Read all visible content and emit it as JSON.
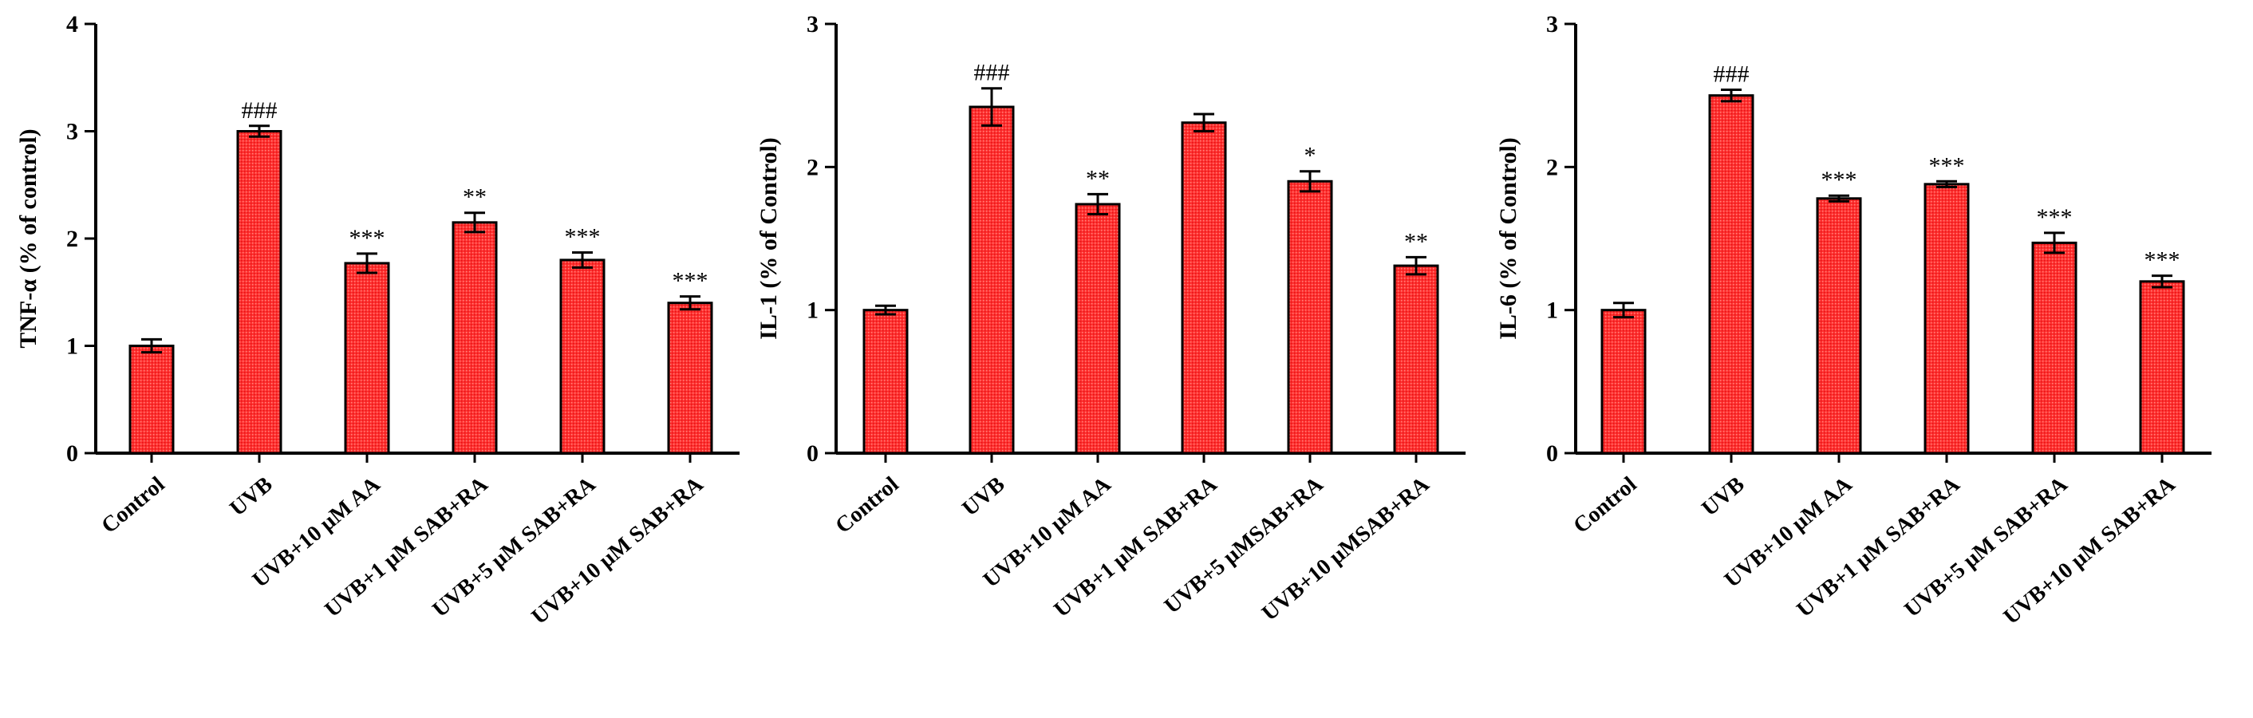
{
  "colors": {
    "bar_fill": "#ff3030",
    "bar_stroke": "#000000",
    "axis": "#000000"
  },
  "chart_data": [
    {
      "type": "bar",
      "ylabel": "TNF-α (% of control)",
      "ylim": [
        0,
        4
      ],
      "yticks": [
        0,
        1,
        2,
        3,
        4
      ],
      "categories": [
        "Control",
        "UVB",
        "UVB+10 μM AA",
        "UVB+1 μM SAB+RA",
        "UVB+5 μM SAB+RA",
        "UVB+10 μM SAB+RA"
      ],
      "values": [
        1.0,
        3.0,
        1.77,
        2.15,
        1.8,
        1.4
      ],
      "errors": [
        0.06,
        0.05,
        0.09,
        0.09,
        0.07,
        0.06
      ],
      "annotations": [
        "",
        "###",
        "***",
        "**",
        "***",
        "***"
      ],
      "grid": false
    },
    {
      "type": "bar",
      "ylabel": "IL-1 (% of Control)",
      "ylim": [
        0,
        3
      ],
      "yticks": [
        0,
        1,
        2,
        3
      ],
      "categories": [
        "Control",
        "UVB",
        "UVB+10 μM AA",
        "UVB+1 μM SAB+RA",
        "UVB+5 μMSAB+RA",
        "UVB+10 μMSAB+RA"
      ],
      "values": [
        1.0,
        2.42,
        1.74,
        2.31,
        1.9,
        1.31
      ],
      "errors": [
        0.03,
        0.13,
        0.07,
        0.06,
        0.07,
        0.06
      ],
      "annotations": [
        "",
        "###",
        "**",
        "",
        "*",
        "**"
      ],
      "grid": false
    },
    {
      "type": "bar",
      "ylabel": "IL-6 (% of Control)",
      "ylim": [
        0,
        3
      ],
      "yticks": [
        0,
        1,
        2,
        3
      ],
      "categories": [
        "Control",
        "UVB",
        "UVB+10 μM AA",
        "UVB+1 μM SAB+RA",
        "UVB+5 μM SAB+RA",
        "UVB+10 μM SAB+RA"
      ],
      "values": [
        1.0,
        2.5,
        1.78,
        1.88,
        1.47,
        1.2
      ],
      "errors": [
        0.05,
        0.04,
        0.02,
        0.02,
        0.07,
        0.04
      ],
      "annotations": [
        "",
        "###",
        "***",
        "***",
        "***",
        "***"
      ],
      "grid": false
    }
  ]
}
